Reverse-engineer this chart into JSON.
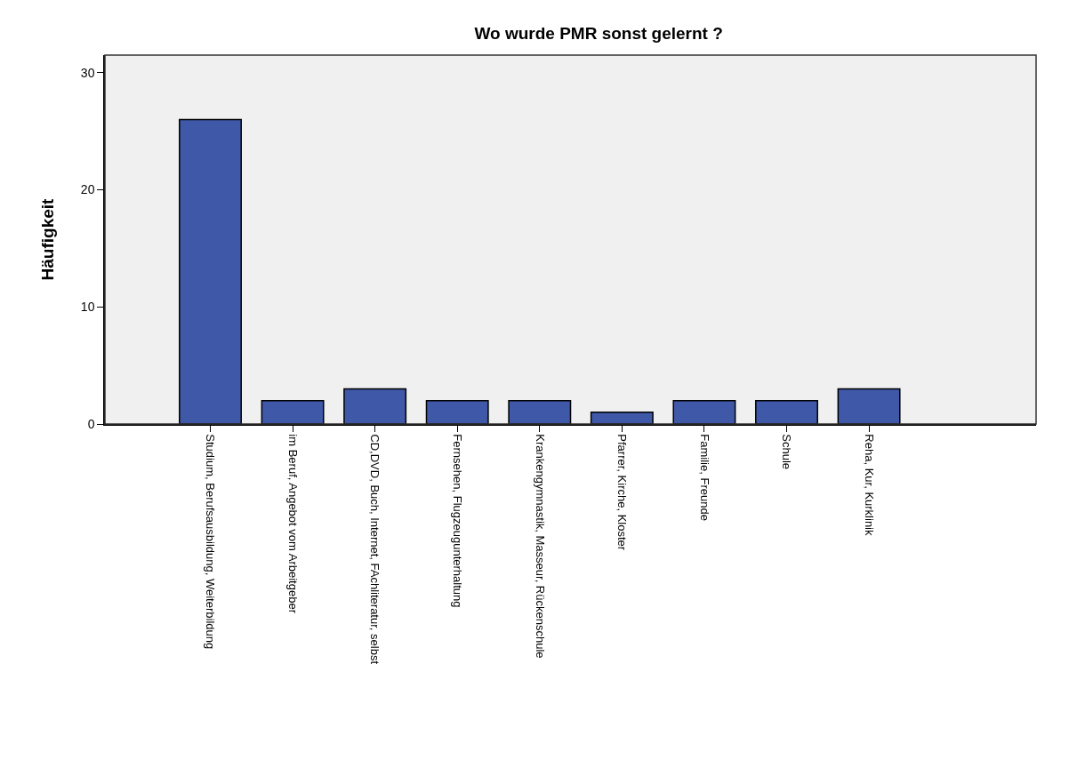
{
  "chart_data": {
    "type": "bar",
    "title": "Wo wurde PMR sonst gelernt ?",
    "ylabel": "Häufigkeit",
    "categories": [
      "Studium, Berufsausbildung, Weiterbildung",
      "im Beruf, Angebot vom Arbeitgeber",
      "CD,DVD, Buch, Internet, FAchliteratur, selbst",
      "Fernsehen, Flugzeugunterhaltung",
      "Krankengymnastik, Masseur, Rückenschule",
      "Pfarrer, Kirche, Kloster",
      "Familie, Freunde",
      "Schule",
      "Reha, Kur, Kurklinik"
    ],
    "values": [
      26,
      2,
      3,
      2,
      2,
      1,
      2,
      2,
      3
    ],
    "color": "#3f58a8",
    "ylim": [
      0,
      31.5
    ],
    "yticks": [
      0,
      10,
      20,
      30
    ],
    "grid": false,
    "legend": false
  }
}
